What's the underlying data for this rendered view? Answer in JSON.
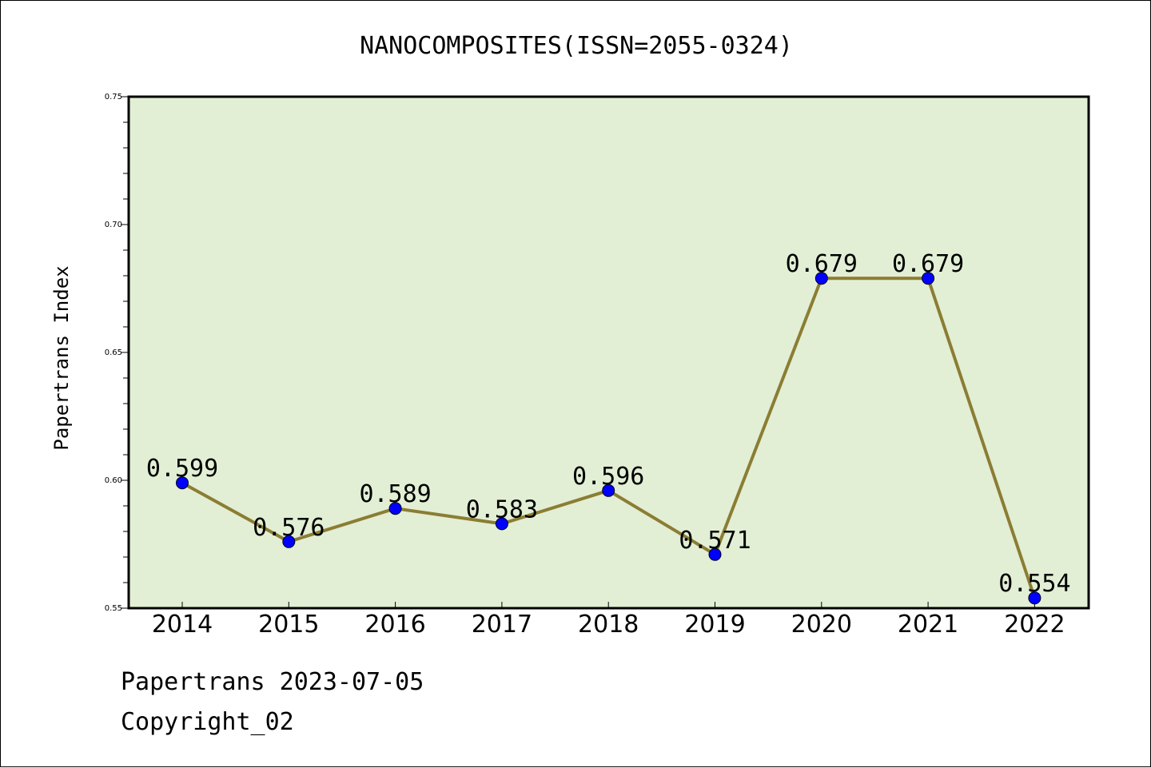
{
  "chart_data": {
    "type": "line",
    "title": "NANOCOMPOSITES(ISSN=2055-0324)",
    "xlabel": "",
    "ylabel": "Papertrans Index",
    "categories": [
      "2014",
      "2015",
      "2016",
      "2017",
      "2018",
      "2019",
      "2020",
      "2021",
      "2022"
    ],
    "series": [
      {
        "values": [
          0.599,
          0.576,
          0.589,
          0.583,
          0.596,
          0.571,
          0.679,
          0.679,
          0.554
        ]
      }
    ],
    "data_labels": [
      "0.599",
      "0.576",
      "0.589",
      "0.583",
      "0.596",
      "0.571",
      "0.679",
      "0.679",
      "0.554"
    ],
    "ylim": [
      0.55,
      0.75
    ],
    "yticks": [
      "0.55",
      "0.60",
      "0.65",
      "0.70",
      "0.75"
    ],
    "y_minor_step": 0.01,
    "grid": false,
    "legend": "none",
    "colors": {
      "plot_background": "#e2efd5",
      "line": "#8b7d33",
      "marker": "#0000ff",
      "axis": "#000000"
    }
  },
  "footer": {
    "line1": "Papertrans 2023-07-05",
    "line2": "Copyright_02"
  }
}
